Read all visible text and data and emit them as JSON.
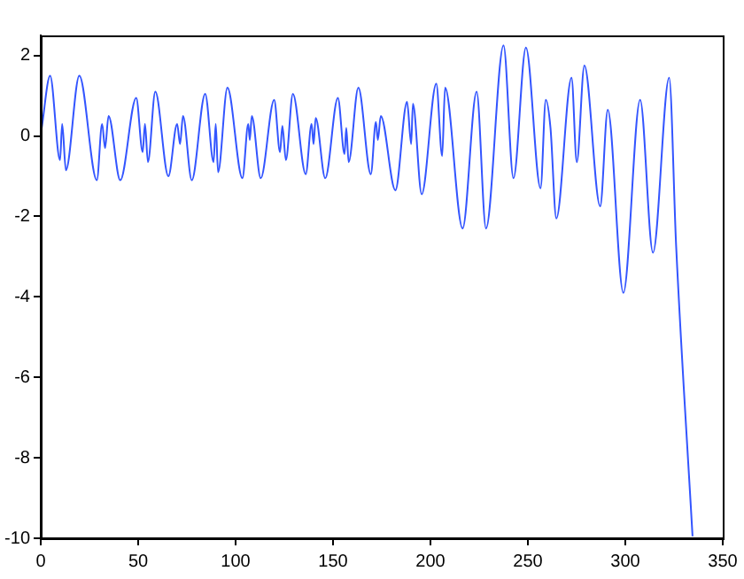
{
  "chart_data": {
    "type": "line",
    "xlim": [
      0,
      350
    ],
    "ylim": [
      -10,
      2.5
    ],
    "xticks": [
      0,
      50,
      100,
      150,
      200,
      250,
      300,
      350
    ],
    "yticks": [
      -10,
      -8,
      -6,
      -4,
      -2,
      0,
      2
    ],
    "legend": false,
    "marker": "none",
    "line_style": "solid",
    "series": [
      {
        "color": "#3355ff",
        "x": [
          0.5,
          4.8,
          9.9,
          11,
          12.9,
          19.8,
          28.8,
          31.5,
          33,
          34.8,
          40.8,
          49,
          52.3,
          53.5,
          55,
          58.8,
          65.5,
          70,
          71.5,
          73,
          77.5,
          84.4,
          88.7,
          89.8,
          91,
          95.8,
          103.5,
          106.5,
          107.3,
          108.3,
          112.9,
          119.8,
          122.8,
          124,
          125.8,
          129.4,
          136,
          139,
          140,
          141.1,
          146,
          152.5,
          155.9,
          156.8,
          158,
          163,
          169.4,
          172,
          173,
          174.5,
          182,
          188,
          190.1,
          191,
          195.5,
          203,
          206,
          207.5,
          216.5,
          223.7,
          228.5,
          237.5,
          242.6,
          249,
          256.5,
          259.2,
          261.6,
          264.6,
          272.4,
          275.1,
          279,
          287.1,
          291,
          299,
          307.6,
          314.2,
          322.5,
          326.1,
          334.5
        ],
        "values": [
          0.2,
          1.5,
          -0.6,
          0.3,
          -0.85,
          1.5,
          -1.1,
          0.3,
          -0.3,
          0.5,
          -1.1,
          0.95,
          -0.4,
          0.3,
          -0.65,
          1.1,
          -1.0,
          0.3,
          -0.2,
          0.5,
          -1.1,
          1.05,
          -0.65,
          0.3,
          -0.9,
          1.2,
          -1.05,
          0.3,
          -0.1,
          0.5,
          -1.05,
          0.9,
          -0.4,
          0.25,
          -0.6,
          1.05,
          -0.95,
          0.3,
          -0.2,
          0.45,
          -1.05,
          0.95,
          -0.45,
          0.2,
          -0.65,
          1.2,
          -0.95,
          0.35,
          -0.1,
          0.5,
          -1.35,
          0.85,
          -0.2,
          0.8,
          -1.45,
          1.3,
          -0.5,
          1.2,
          -2.3,
          1.1,
          -2.3,
          2.25,
          -1.05,
          2.2,
          -1.3,
          0.9,
          0.2,
          -2.05,
          1.45,
          -0.65,
          1.75,
          -1.75,
          0.65,
          -3.9,
          0.9,
          -2.9,
          1.45,
          -2.75,
          -9.95
        ]
      }
    ]
  }
}
